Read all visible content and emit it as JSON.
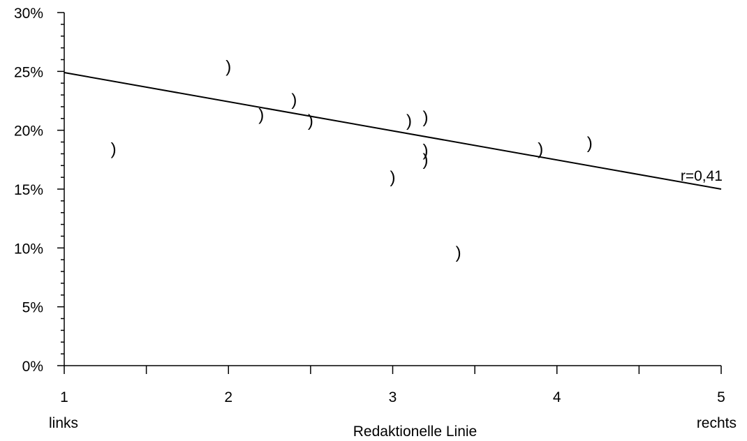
{
  "chart_data": {
    "type": "scatter",
    "title": "",
    "xlabel": "Redaktionelle Linie",
    "ylabel": "",
    "xlim": [
      1,
      5
    ],
    "ylim": [
      0,
      30
    ],
    "x_ticks": [
      "1",
      "2",
      "3",
      "4",
      "5"
    ],
    "x_tick_values": [
      1,
      2,
      3,
      4,
      5
    ],
    "y_ticks": [
      "0%",
      "5%",
      "10%",
      "15%",
      "20%",
      "25%",
      "30%"
    ],
    "y_tick_values": [
      0,
      5,
      10,
      15,
      20,
      25,
      30
    ],
    "x_end_labels": {
      "left": "links",
      "right": "rechts"
    },
    "marker_symbol": ")",
    "grid": false,
    "series": [
      {
        "points": [
          {
            "x": 1.3,
            "y": 18.4
          },
          {
            "x": 2.0,
            "y": 25.4
          },
          {
            "x": 2.2,
            "y": 21.3
          },
          {
            "x": 2.4,
            "y": 22.6
          },
          {
            "x": 2.5,
            "y": 20.8
          },
          {
            "x": 3.0,
            "y": 16.0
          },
          {
            "x": 3.1,
            "y": 20.8
          },
          {
            "x": 3.2,
            "y": 21.1
          },
          {
            "x": 3.2,
            "y": 18.3
          },
          {
            "x": 3.2,
            "y": 17.5
          },
          {
            "x": 3.4,
            "y": 9.6
          },
          {
            "x": 3.9,
            "y": 18.4
          },
          {
            "x": 4.2,
            "y": 18.9
          }
        ]
      }
    ],
    "trendline": {
      "x": [
        1,
        5
      ],
      "y": [
        24.9,
        15.0
      ],
      "label": "r=0,41"
    }
  }
}
